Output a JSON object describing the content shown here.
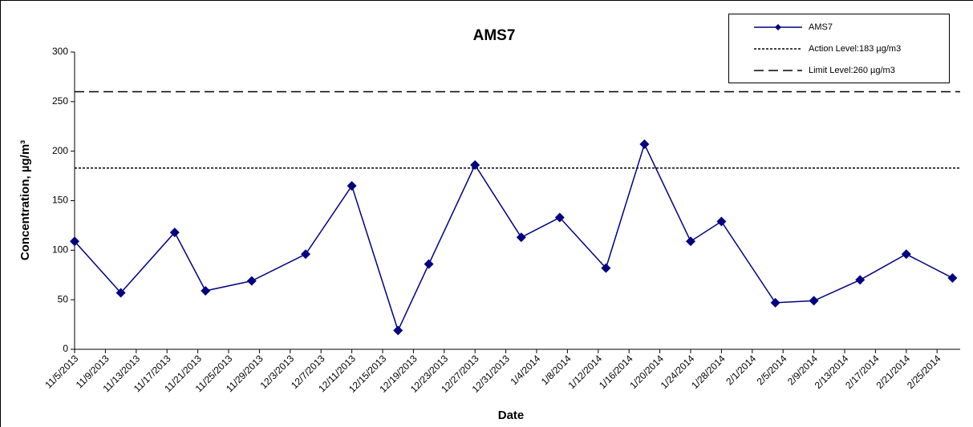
{
  "chart_data": {
    "type": "line",
    "title": "AMS7",
    "x_label": "Date",
    "y_label": "Concentration, µg/m³",
    "x": [
      "11/5/2013",
      "11/11/2013",
      "11/18/2013",
      "11/22/2013",
      "11/28/2013",
      "12/5/2013",
      "12/11/2013",
      "12/17/2013",
      "12/21/2013",
      "12/27/2013",
      "1/2/2014",
      "1/7/2014",
      "1/13/2014",
      "1/18/2014",
      "1/24/2014",
      "1/28/2014",
      "2/4/2014",
      "2/9/2014",
      "2/15/2014",
      "2/21/2014",
      "2/27/2014"
    ],
    "series": [
      {
        "name": "AMS7",
        "color": "#000080",
        "values": [
          109,
          57,
          118,
          59,
          69,
          96,
          165,
          19,
          86,
          186,
          113,
          133,
          82,
          207,
          109,
          129,
          47,
          49,
          70,
          96,
          72
        ]
      }
    ],
    "reference_lines": [
      {
        "name": "Action Level:183 µg/m3",
        "value": 183,
        "color": "#000000",
        "dash": "3,2"
      },
      {
        "name": "Limit Level:260 µg/m3",
        "value": 260,
        "color": "#000000",
        "dash": "12,6"
      }
    ],
    "xlim": [
      "11/5/2013",
      "2/28/2014"
    ],
    "xticks": [
      "11/5/2013",
      "11/9/2013",
      "11/13/2013",
      "11/17/2013",
      "11/21/2013",
      "11/25/2013",
      "11/29/2013",
      "12/3/2013",
      "12/7/2013",
      "12/11/2013",
      "12/15/2013",
      "12/19/2013",
      "12/23/2013",
      "12/27/2013",
      "12/31/2013",
      "1/4/2014",
      "1/8/2014",
      "1/12/2014",
      "1/16/2014",
      "1/20/2014",
      "1/24/2014",
      "1/28/2014",
      "2/1/2014",
      "2/5/2014",
      "2/9/2014",
      "2/13/2014",
      "2/17/2014",
      "2/21/2014",
      "2/25/2014"
    ],
    "ylim": [
      0,
      300
    ],
    "yticks": [
      0,
      50,
      100,
      150,
      200,
      250,
      300
    ],
    "grid": false,
    "legend": "top-right"
  }
}
